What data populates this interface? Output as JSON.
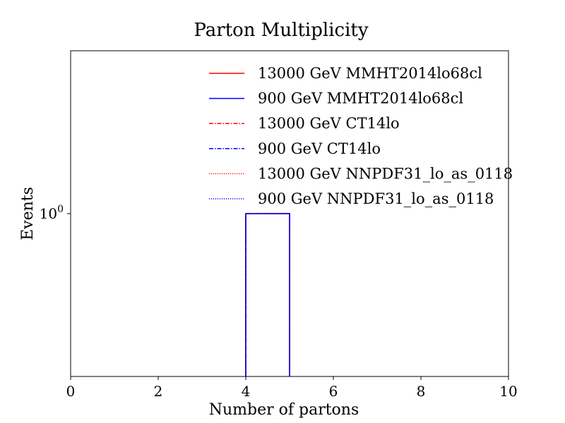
{
  "chart_data": {
    "type": "line",
    "title": "Parton Multiplicity",
    "xlabel": "Number of partons",
    "ylabel": "Events",
    "xlim": [
      0,
      10
    ],
    "x_ticks": [
      "0",
      "2",
      "4",
      "6",
      "8",
      "10"
    ],
    "x_tick_values": [
      0,
      2,
      4,
      6,
      8,
      10
    ],
    "y_scale": "log",
    "ylim_log10": [
      -1,
      1
    ],
    "y_tick": {
      "base": "10",
      "exponent": "0",
      "value": 1
    },
    "legend_position": "top-right",
    "series": [
      {
        "name": "13000 GeV MMHT2014lo68cl",
        "color": "#ff0000",
        "line_style": "solid",
        "bins": [
          [
            4,
            5,
            1
          ]
        ]
      },
      {
        "name": "900 GeV MMHT2014lo68cl",
        "color": "#0000ff",
        "line_style": "solid",
        "bins": [
          [
            4,
            5,
            1
          ]
        ]
      },
      {
        "name": "13000 GeV CT14lo",
        "color": "#ff0000",
        "line_style": "dashdot",
        "bins": [
          [
            4,
            5,
            1
          ]
        ]
      },
      {
        "name": "900 GeV CT14lo",
        "color": "#0000ff",
        "line_style": "dashdot",
        "bins": [
          [
            4,
            5,
            1
          ]
        ]
      },
      {
        "name": "13000 GeV NNPDF31_lo_as_0118",
        "color": "#ff0000",
        "line_style": "dotted",
        "bins": [
          [
            4,
            5,
            1
          ]
        ]
      },
      {
        "name": "900 GeV NNPDF31_lo_as_0118",
        "color": "#0000ff",
        "line_style": "dotted",
        "bins": [
          [
            4,
            5,
            1
          ]
        ]
      }
    ]
  }
}
